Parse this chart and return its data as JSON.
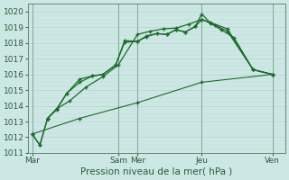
{
  "xlabel": "Pression niveau de la mer( hPa )",
  "bg_color": "#cde8e4",
  "grid_major_color": "#a8ccc8",
  "grid_minor_color": "#c0ddd9",
  "line_color": "#1a6b2a",
  "ylim": [
    1011,
    1020.5
  ],
  "yticks": [
    1011,
    1012,
    1013,
    1014,
    1015,
    1016,
    1017,
    1018,
    1019,
    1020
  ],
  "xlim": [
    0,
    20
  ],
  "day_labels": [
    "Mar",
    "Sam",
    "Mer",
    "Jeu",
    "Ven"
  ],
  "day_positions": [
    0.3,
    7.0,
    8.5,
    13.5,
    19.0
  ],
  "vline_positions": [
    0.3,
    7.0,
    8.5,
    13.5,
    19.0
  ],
  "series1_x": [
    0.3,
    0.9,
    1.5,
    2.2,
    3.0,
    4.0,
    5.0,
    5.8,
    6.8,
    7.5,
    8.5,
    9.2,
    10.0,
    10.8,
    11.5,
    12.2,
    13.0,
    13.5,
    14.2,
    15.0,
    16.0,
    17.5,
    19.0
  ],
  "series1_y": [
    1012.2,
    1011.5,
    1013.2,
    1013.8,
    1014.8,
    1015.7,
    1015.9,
    1016.0,
    1016.6,
    1018.15,
    1018.1,
    1018.45,
    1018.6,
    1018.55,
    1018.85,
    1018.7,
    1019.05,
    1019.85,
    1019.25,
    1018.85,
    1018.35,
    1016.3,
    1016.0
  ],
  "series2_x": [
    0.3,
    0.9,
    1.5,
    2.2,
    3.0,
    4.0,
    5.0,
    5.8,
    6.8,
    7.5,
    8.5,
    9.2,
    10.0,
    10.8,
    11.5,
    12.2,
    13.0,
    13.5,
    14.2,
    15.5,
    17.5,
    19.0
  ],
  "series2_y": [
    1012.2,
    1011.5,
    1013.2,
    1013.75,
    1014.8,
    1015.5,
    1015.9,
    1016.0,
    1016.6,
    1018.05,
    1018.1,
    1018.4,
    1018.6,
    1018.55,
    1018.85,
    1018.7,
    1019.05,
    1019.5,
    1019.3,
    1018.9,
    1016.3,
    1016.0
  ],
  "series3_x": [
    1.5,
    2.2,
    3.2,
    4.5,
    5.8,
    7.0,
    8.5,
    9.5,
    10.5,
    11.5,
    12.5,
    13.5,
    14.5,
    15.5,
    17.5,
    19.0
  ],
  "series3_y": [
    1013.2,
    1013.8,
    1014.3,
    1015.2,
    1015.85,
    1016.6,
    1018.55,
    1018.75,
    1018.9,
    1018.95,
    1019.2,
    1019.5,
    1019.15,
    1018.75,
    1016.3,
    1016.0
  ],
  "series4_x": [
    0.3,
    4.0,
    8.5,
    13.5,
    19.0
  ],
  "series4_y": [
    1012.2,
    1013.2,
    1014.2,
    1015.5,
    1016.0
  ]
}
